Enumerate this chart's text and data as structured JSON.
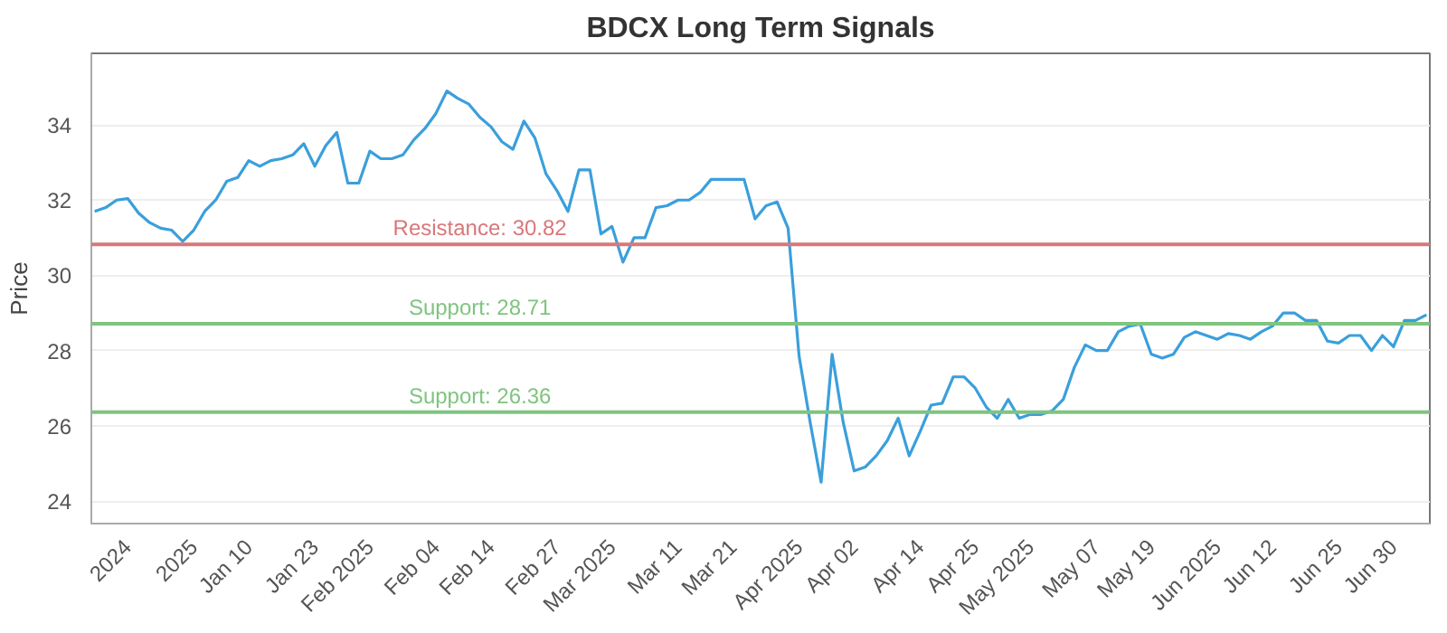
{
  "chart_data": {
    "type": "line",
    "title": "BDCX Long Term Signals",
    "ylabel": "Price",
    "categories": [
      null,
      null,
      null,
      "2024",
      null,
      null,
      null,
      null,
      null,
      "2025",
      null,
      null,
      null,
      null,
      "Jan 10",
      null,
      null,
      null,
      null,
      null,
      "Jan 23",
      null,
      null,
      null,
      null,
      "Feb 2025",
      null,
      null,
      null,
      null,
      null,
      "Feb 04",
      null,
      null,
      null,
      null,
      "Feb 14",
      null,
      null,
      null,
      null,
      null,
      "Feb 27",
      null,
      null,
      null,
      null,
      "Mar 2025",
      null,
      null,
      null,
      null,
      null,
      "Mar 11",
      null,
      null,
      null,
      null,
      "Mar 21",
      null,
      null,
      null,
      null,
      null,
      "Apr 2025",
      null,
      null,
      null,
      null,
      "Apr 02",
      null,
      null,
      null,
      null,
      null,
      "Apr 14",
      null,
      null,
      null,
      null,
      "Apr 25",
      null,
      null,
      null,
      null,
      "May 2025",
      null,
      null,
      null,
      null,
      null,
      "May 07",
      null,
      null,
      null,
      null,
      "May 19",
      null,
      null,
      null,
      null,
      null,
      "Jun 2025",
      null,
      null,
      null,
      null,
      "Jun 12",
      null,
      null,
      null,
      null,
      null,
      "Jun 25",
      null,
      null,
      null,
      null,
      "Jun 30",
      null,
      null,
      null
    ],
    "series": [
      {
        "color": "#3a9fdc",
        "values": [
          31.7,
          31.8,
          32.0,
          32.04,
          31.65,
          31.4,
          31.25,
          31.2,
          30.9,
          31.2,
          31.7,
          32.0,
          32.5,
          32.6,
          33.05,
          32.9,
          33.05,
          33.1,
          33.2,
          33.5,
          32.9,
          33.45,
          33.8,
          32.45,
          32.45,
          33.3,
          33.1,
          33.1,
          33.2,
          33.6,
          33.9,
          34.3,
          34.9,
          34.7,
          34.55,
          34.2,
          33.95,
          33.55,
          33.35,
          34.1,
          33.65,
          32.7,
          32.25,
          31.7,
          32.8,
          32.8,
          31.1,
          31.3,
          30.35,
          31.0,
          31.0,
          31.8,
          31.85,
          32.0,
          32.0,
          32.2,
          32.55,
          32.55,
          32.55,
          32.55,
          31.5,
          31.85,
          31.95,
          31.25,
          27.85,
          26.1,
          24.5,
          27.9,
          26.1,
          24.8,
          24.9,
          25.2,
          25.6,
          26.2,
          25.2,
          25.85,
          26.55,
          26.6,
          27.3,
          27.3,
          27.0,
          26.5,
          26.2,
          26.7,
          26.2,
          26.3,
          26.3,
          26.4,
          26.7,
          27.55,
          28.15,
          28.0,
          28.0,
          28.5,
          28.65,
          28.7,
          27.9,
          27.8,
          27.9,
          28.35,
          28.5,
          28.4,
          28.3,
          28.45,
          28.4,
          28.3,
          28.5,
          28.65,
          29.0,
          29.0,
          28.8,
          28.8,
          28.25,
          28.2,
          28.4,
          28.4,
          28.0,
          28.4,
          28.1,
          28.8,
          28.8,
          28.95
        ]
      }
    ],
    "ylim": [
      23.4,
      35.9
    ],
    "yticks": [
      24,
      26,
      28,
      30,
      32,
      34
    ],
    "grid": "y",
    "marker": "none",
    "line_style": "solid",
    "ref_lines": [
      {
        "axis": "y",
        "value": 30.82,
        "label": "Resistance: 30.82",
        "color": "#d9777a"
      },
      {
        "axis": "y",
        "value": 28.71,
        "label": "Support: 28.71",
        "color": "#7fc47f"
      },
      {
        "axis": "y",
        "value": 26.36,
        "label": "Support: 26.36",
        "color": "#7fc47f"
      }
    ]
  }
}
